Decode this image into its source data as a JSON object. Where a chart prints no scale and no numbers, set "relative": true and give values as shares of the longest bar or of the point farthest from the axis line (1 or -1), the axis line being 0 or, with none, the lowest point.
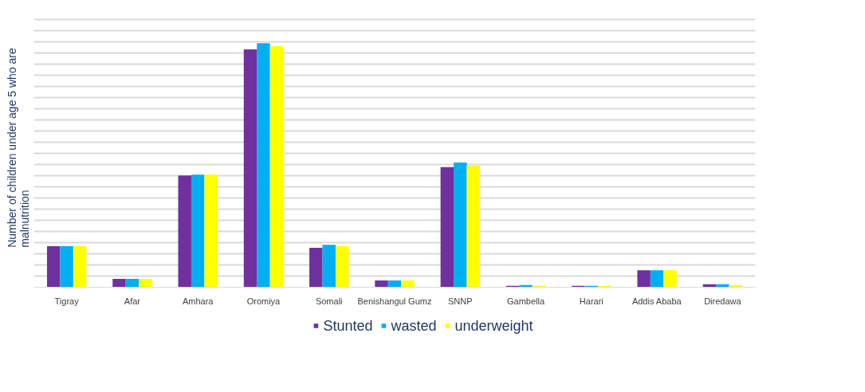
{
  "chart_data": {
    "type": "bar",
    "relative": true,
    "ylabel": "Number of children under age 5 who are\nmalnutrition",
    "categories": [
      "Tigray",
      "Afar",
      "Amhara",
      "Oromiya",
      "Somali",
      "Benishangul Gumz",
      "SNNP",
      "Gambella",
      "Harari",
      "Addis Ababa",
      "Diredawa"
    ],
    "series": [
      {
        "name": "Stunted",
        "color": "#7030a0",
        "values": [
          0.168,
          0.034,
          0.458,
          0.975,
          0.162,
          0.028,
          0.492,
          0.006,
          0.006,
          0.069,
          0.012
        ]
      },
      {
        "name": "wasted",
        "color": "#00b0f0",
        "values": [
          0.168,
          0.034,
          0.461,
          1,
          0.174,
          0.028,
          0.511,
          0.009,
          0.006,
          0.069,
          0.012
        ]
      },
      {
        "name": "underweight",
        "color": "#ffff00",
        "values": [
          0.168,
          0.034,
          0.461,
          0.988,
          0.168,
          0.028,
          0.498,
          0.006,
          0.006,
          0.069,
          0.009
        ]
      }
    ],
    "grid": "y",
    "legend": "bottom",
    "tick_labels": "x"
  }
}
